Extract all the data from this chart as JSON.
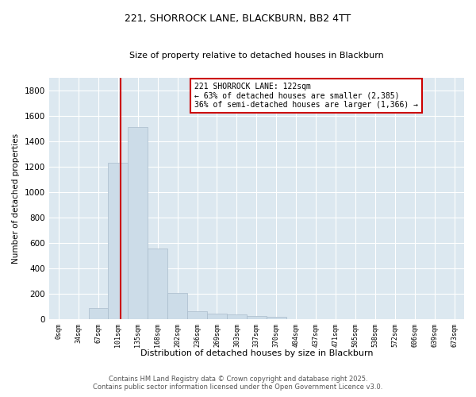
{
  "title1": "221, SHORROCK LANE, BLACKBURN, BB2 4TT",
  "title2": "Size of property relative to detached houses in Blackburn",
  "xlabel": "Distribution of detached houses by size in Blackburn",
  "ylabel": "Number of detached properties",
  "bin_labels": [
    "0sqm",
    "34sqm",
    "67sqm",
    "101sqm",
    "135sqm",
    "168sqm",
    "202sqm",
    "236sqm",
    "269sqm",
    "303sqm",
    "337sqm",
    "370sqm",
    "404sqm",
    "437sqm",
    "471sqm",
    "505sqm",
    "538sqm",
    "572sqm",
    "606sqm",
    "639sqm",
    "673sqm"
  ],
  "bar_values": [
    0,
    0,
    90,
    1235,
    1510,
    560,
    210,
    65,
    45,
    40,
    25,
    20,
    5,
    2,
    1,
    1,
    0,
    0,
    0,
    0,
    0
  ],
  "bar_color": "#ccdce8",
  "bar_edgecolor": "#aabccc",
  "vline_color": "#cc0000",
  "annotation_line1": "221 SHORROCK LANE: 122sqm",
  "annotation_line2": "← 63% of detached houses are smaller (2,385)",
  "annotation_line3": "36% of semi-detached houses are larger (1,366) →",
  "annotation_box_color": "#ffffff",
  "annotation_box_edgecolor": "#cc0000",
  "ylim": [
    0,
    1900
  ],
  "yticks": [
    0,
    200,
    400,
    600,
    800,
    1000,
    1200,
    1400,
    1600,
    1800
  ],
  "bg_color": "#dce8f0",
  "fig_bg_color": "#ffffff",
  "footer1": "Contains HM Land Registry data © Crown copyright and database right 2025.",
  "footer2": "Contains public sector information licensed under the Open Government Licence v3.0."
}
